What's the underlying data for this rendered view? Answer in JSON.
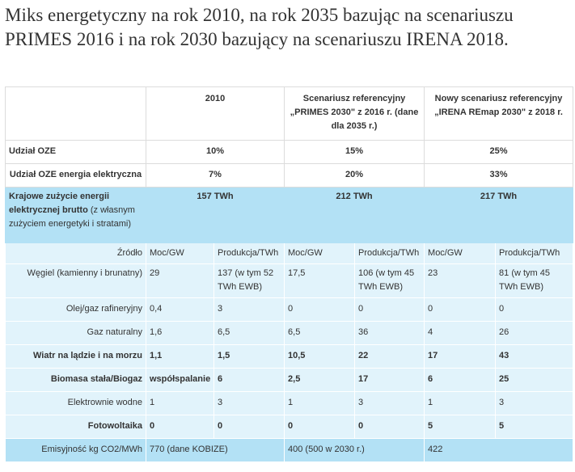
{
  "heading": "Miks energetyczny na rok 2010, na rok 2035 bazując na scenariuszu PRIMES 2016 i na rok 2030 bazujący na scenariuszu IRENA 2018.",
  "table": {
    "header": {
      "col_2010": "2010",
      "col_primes": "Scenariusz referencyjny „PRIMES 2030\" z 2016 r. (dane dla 2035 r.)",
      "col_irena": "Nowy scenariusz referencyjny „IRENA REmap 2030\" z 2018 r."
    },
    "udzial_oze": {
      "label": "Udział OZE",
      "v2010": "10%",
      "primes": "15%",
      "irena": "25%"
    },
    "udzial_oze_el": {
      "label": "Udział OZE energia elektryczna",
      "v2010": "7%",
      "primes": "20%",
      "irena": "33%"
    },
    "zuzycie": {
      "label_bold": "Krajowe zużycie energii elektrycznej brutto",
      "label_rest": " (z własnym zużyciem energetyki i stratami)",
      "v2010": "157 TWh",
      "primes": "212 TWh",
      "irena": "217 TWh"
    },
    "source_header": {
      "label": "Źródło",
      "moc": "Moc/GW",
      "prod": "Produkcja/TWh"
    },
    "rows": [
      {
        "label": "Węgiel (kamienny i brunatny)",
        "m1": "29",
        "p1": "137 (w tym 52 TWh EWB)",
        "m2": "17,5",
        "p2": "106 (w tym 45 TWh EWB)",
        "m3": "23",
        "p3": "81 (w tym 45 TWh EWB)"
      },
      {
        "label": "Olej/gaz rafineryjny",
        "m1": "0,4",
        "p1": "3",
        "m2": "0",
        "p2": "0",
        "m3": "0",
        "p3": "0"
      },
      {
        "label": "Gaz naturalny",
        "m1": "1,6",
        "p1": "6,5",
        "m2": "6,5",
        "p2": "36",
        "m3": "4",
        "p3": "26"
      },
      {
        "label": "Wiatr na lądzie i na morzu",
        "m1": "1,1",
        "p1": "1,5",
        "m2": "10,5",
        "p2": "22",
        "m3": "17",
        "p3": "43"
      },
      {
        "label": "Biomasa stała/Biogaz",
        "m1": "współspalanie",
        "p1": "6",
        "m2": "2,5",
        "p2": "17",
        "m3": "6",
        "p3": "25"
      },
      {
        "label": "Elektrownie wodne",
        "m1": "1",
        "p1": "3",
        "m2": "1",
        "p2": "3",
        "m3": "1",
        "p3": "3"
      },
      {
        "label": "Fotowoltaika",
        "m1": "0",
        "p1": "0",
        "m2": "0",
        "p2": "0",
        "m3": "5",
        "p3": "5"
      }
    ],
    "emisyjnosc": {
      "label": "Emisyjność kg CO2/MWh",
      "v2010": "770 (dane KOBIZE)",
      "primes": "400 (500 w 2030 r.)",
      "irena": "422"
    }
  }
}
